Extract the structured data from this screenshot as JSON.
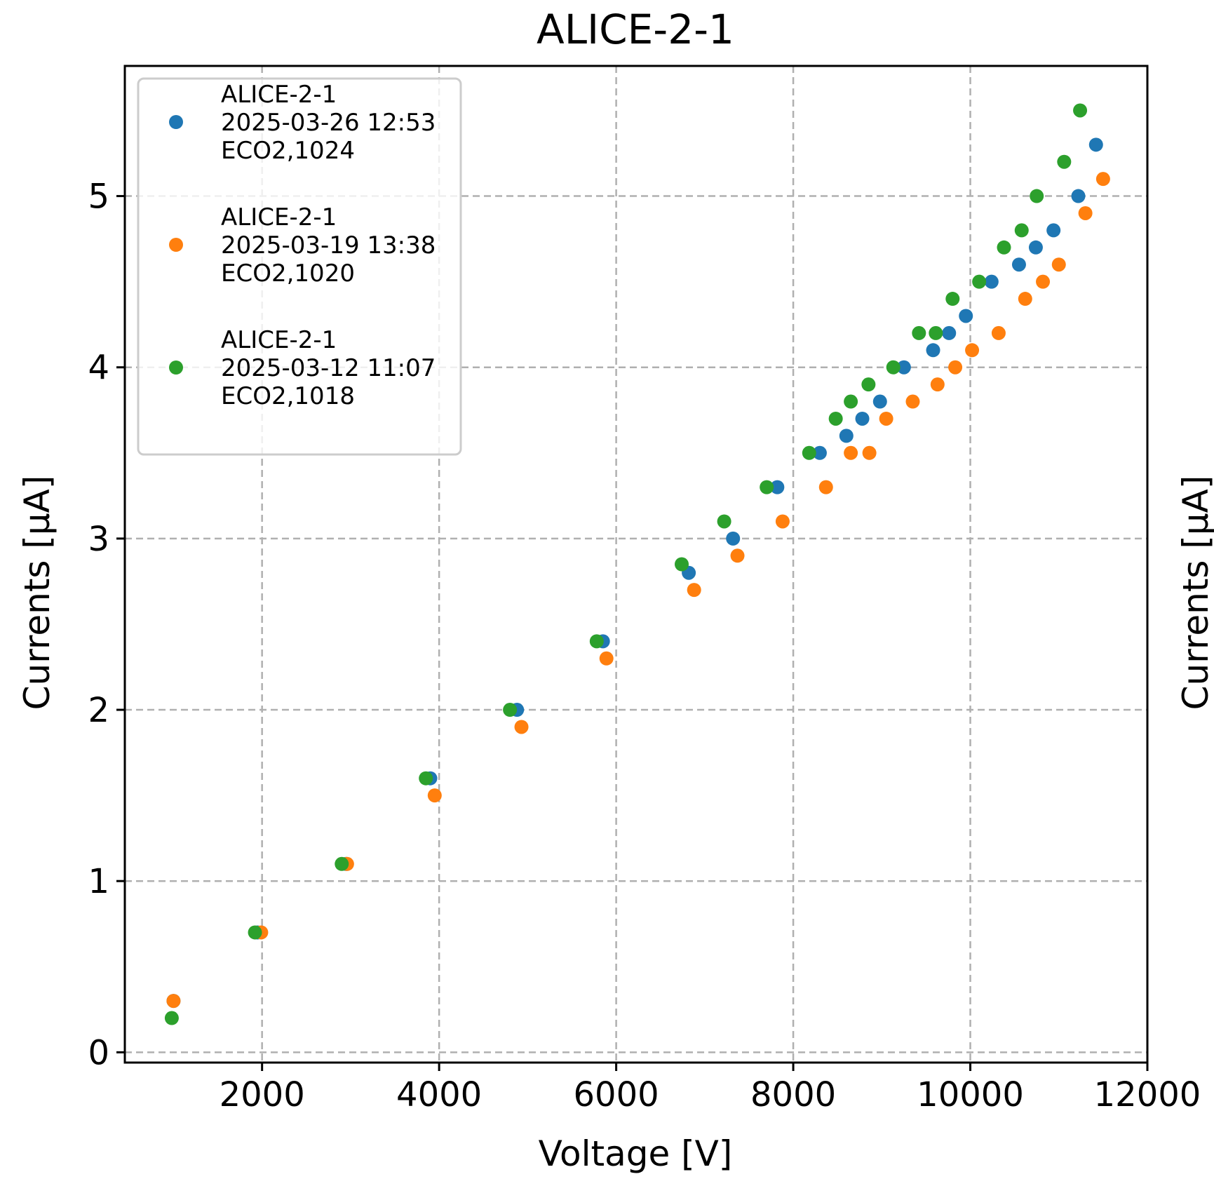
{
  "chart_data": {
    "type": "scatter",
    "title": "ALICE-2-1",
    "xlabel": "Voltage [V]",
    "ylabel": "Currents [μA]",
    "ylabel_right": "Currents [μA]",
    "xlim": [
      450,
      12000
    ],
    "ylim": [
      -0.06,
      5.76
    ],
    "x_ticks": [
      2000,
      4000,
      6000,
      8000,
      10000,
      12000
    ],
    "x_tick_labels": [
      "2000",
      "4000",
      "6000",
      "8000",
      "10000",
      "12000"
    ],
    "y_ticks": [
      0,
      1,
      2,
      3,
      4,
      5
    ],
    "y_tick_labels": [
      "0",
      "1",
      "2",
      "3",
      "4",
      "5"
    ],
    "grid": true,
    "legend_position": "top-left",
    "series": [
      {
        "name": "ALICE-2-1\n2025-03-26 12:53\nECO2,1024",
        "color": "#1f77b4",
        "points": [
          [
            1000,
            0.3
          ],
          [
            1950,
            0.7
          ],
          [
            2950,
            1.1
          ],
          [
            3900,
            1.6
          ],
          [
            4880,
            2.0
          ],
          [
            5850,
            2.4
          ],
          [
            6820,
            2.8
          ],
          [
            7320,
            3.0
          ],
          [
            7820,
            3.3
          ],
          [
            8300,
            3.5
          ],
          [
            8600,
            3.6
          ],
          [
            8780,
            3.7
          ],
          [
            8980,
            3.8
          ],
          [
            9250,
            4.0
          ],
          [
            9580,
            4.1
          ],
          [
            9760,
            4.2
          ],
          [
            9950,
            4.3
          ],
          [
            10240,
            4.5
          ],
          [
            10550,
            4.6
          ],
          [
            10740,
            4.7
          ],
          [
            10940,
            4.8
          ],
          [
            11220,
            5.0
          ],
          [
            11420,
            5.3
          ]
        ]
      },
      {
        "name": "ALICE-2-1\n2025-03-19 13:38\nECO2,1020",
        "color": "#ff7f0e",
        "points": [
          [
            1000,
            0.3
          ],
          [
            1990,
            0.7
          ],
          [
            2960,
            1.1
          ],
          [
            3950,
            1.5
          ],
          [
            4930,
            1.9
          ],
          [
            5890,
            2.3
          ],
          [
            6880,
            2.7
          ],
          [
            7370,
            2.9
          ],
          [
            7880,
            3.1
          ],
          [
            8370,
            3.3
          ],
          [
            8650,
            3.5
          ],
          [
            8860,
            3.5
          ],
          [
            9050,
            3.7
          ],
          [
            9350,
            3.8
          ],
          [
            9630,
            3.9
          ],
          [
            9830,
            4.0
          ],
          [
            10020,
            4.1
          ],
          [
            10320,
            4.2
          ],
          [
            10620,
            4.4
          ],
          [
            10820,
            4.5
          ],
          [
            11000,
            4.6
          ],
          [
            11300,
            4.9
          ],
          [
            11500,
            5.1
          ]
        ]
      },
      {
        "name": "ALICE-2-1\n2025-03-12 11:07\nECO2,1018",
        "color": "#2ca02c",
        "points": [
          [
            980,
            0.2
          ],
          [
            1920,
            0.7
          ],
          [
            2900,
            1.1
          ],
          [
            3850,
            1.6
          ],
          [
            4800,
            2.0
          ],
          [
            5780,
            2.4
          ],
          [
            6740,
            2.85
          ],
          [
            7220,
            3.1
          ],
          [
            7700,
            3.3
          ],
          [
            8180,
            3.5
          ],
          [
            8480,
            3.7
          ],
          [
            8650,
            3.8
          ],
          [
            8850,
            3.9
          ],
          [
            9130,
            4.0
          ],
          [
            9420,
            4.2
          ],
          [
            9610,
            4.2
          ],
          [
            9800,
            4.4
          ],
          [
            10100,
            4.5
          ],
          [
            10380,
            4.7
          ],
          [
            10580,
            4.8
          ],
          [
            10750,
            5.0
          ],
          [
            11060,
            5.2
          ],
          [
            11240,
            5.5
          ]
        ]
      }
    ]
  }
}
